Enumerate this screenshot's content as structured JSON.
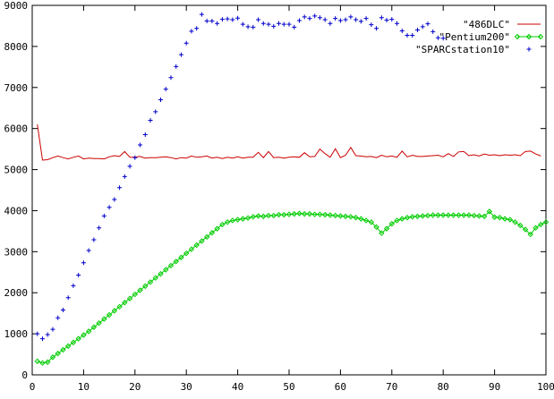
{
  "chart_data": {
    "type": "line",
    "xlim": [
      0,
      100
    ],
    "ylim": [
      0,
      9000
    ],
    "x_ticks": [
      0,
      10,
      20,
      30,
      40,
      50,
      60,
      70,
      80,
      90,
      100
    ],
    "y_ticks": [
      0,
      1000,
      2000,
      3000,
      4000,
      5000,
      6000,
      7000,
      8000,
      9000
    ],
    "grid": false,
    "legend_position": "top-right",
    "series": [
      {
        "name": "\"486DLC\"",
        "style": "lines",
        "color": "#cc0000",
        "points": [
          [
            1,
            6100
          ],
          [
            2,
            5230
          ],
          [
            3,
            5240
          ],
          [
            4,
            5290
          ],
          [
            5,
            5330
          ],
          [
            6,
            5290
          ],
          [
            7,
            5260
          ],
          [
            8,
            5300
          ],
          [
            9,
            5330
          ],
          [
            10,
            5260
          ],
          [
            11,
            5280
          ],
          [
            12,
            5270
          ],
          [
            13,
            5270
          ],
          [
            14,
            5260
          ],
          [
            15,
            5310
          ],
          [
            16,
            5340
          ],
          [
            17,
            5320
          ],
          [
            18,
            5440
          ],
          [
            19,
            5300
          ],
          [
            20,
            5300
          ],
          [
            21,
            5320
          ],
          [
            22,
            5280
          ],
          [
            23,
            5290
          ],
          [
            24,
            5290
          ],
          [
            25,
            5300
          ],
          [
            26,
            5310
          ],
          [
            27,
            5290
          ],
          [
            28,
            5260
          ],
          [
            29,
            5290
          ],
          [
            30,
            5280
          ],
          [
            31,
            5330
          ],
          [
            32,
            5300
          ],
          [
            33,
            5310
          ],
          [
            34,
            5330
          ],
          [
            35,
            5280
          ],
          [
            36,
            5300
          ],
          [
            37,
            5270
          ],
          [
            38,
            5300
          ],
          [
            39,
            5280
          ],
          [
            40,
            5310
          ],
          [
            41,
            5280
          ],
          [
            42,
            5300
          ],
          [
            43,
            5300
          ],
          [
            44,
            5420
          ],
          [
            45,
            5290
          ],
          [
            46,
            5440
          ],
          [
            47,
            5290
          ],
          [
            48,
            5300
          ],
          [
            49,
            5280
          ],
          [
            50,
            5300
          ],
          [
            51,
            5310
          ],
          [
            52,
            5300
          ],
          [
            53,
            5410
          ],
          [
            54,
            5310
          ],
          [
            55,
            5320
          ],
          [
            56,
            5500
          ],
          [
            57,
            5390
          ],
          [
            58,
            5300
          ],
          [
            59,
            5510
          ],
          [
            60,
            5290
          ],
          [
            61,
            5350
          ],
          [
            62,
            5540
          ],
          [
            63,
            5340
          ],
          [
            64,
            5330
          ],
          [
            65,
            5310
          ],
          [
            66,
            5320
          ],
          [
            67,
            5290
          ],
          [
            68,
            5350
          ],
          [
            69,
            5310
          ],
          [
            70,
            5330
          ],
          [
            71,
            5300
          ],
          [
            72,
            5450
          ],
          [
            73,
            5310
          ],
          [
            74,
            5350
          ],
          [
            75,
            5320
          ],
          [
            76,
            5320
          ],
          [
            77,
            5330
          ],
          [
            78,
            5340
          ],
          [
            79,
            5350
          ],
          [
            80,
            5310
          ],
          [
            81,
            5390
          ],
          [
            82,
            5320
          ],
          [
            83,
            5430
          ],
          [
            84,
            5440
          ],
          [
            85,
            5340
          ],
          [
            86,
            5360
          ],
          [
            87,
            5330
          ],
          [
            88,
            5380
          ],
          [
            89,
            5350
          ],
          [
            90,
            5360
          ],
          [
            91,
            5340
          ],
          [
            92,
            5360
          ],
          [
            93,
            5350
          ],
          [
            94,
            5360
          ],
          [
            95,
            5340
          ],
          [
            96,
            5440
          ],
          [
            97,
            5450
          ],
          [
            98,
            5380
          ],
          [
            99,
            5330
          ]
        ]
      },
      {
        "name": "\"Pentium200\"",
        "style": "linespoints",
        "color": "#00cc00",
        "points": [
          [
            1,
            330
          ],
          [
            2,
            290
          ],
          [
            3,
            310
          ],
          [
            4,
            430
          ],
          [
            5,
            520
          ],
          [
            6,
            610
          ],
          [
            7,
            700
          ],
          [
            8,
            790
          ],
          [
            9,
            880
          ],
          [
            10,
            970
          ],
          [
            11,
            1060
          ],
          [
            12,
            1160
          ],
          [
            13,
            1260
          ],
          [
            14,
            1360
          ],
          [
            15,
            1460
          ],
          [
            16,
            1560
          ],
          [
            17,
            1660
          ],
          [
            18,
            1760
          ],
          [
            19,
            1860
          ],
          [
            20,
            1960
          ],
          [
            21,
            2060
          ],
          [
            22,
            2160
          ],
          [
            23,
            2260
          ],
          [
            24,
            2360
          ],
          [
            25,
            2460
          ],
          [
            26,
            2560
          ],
          [
            27,
            2660
          ],
          [
            28,
            2760
          ],
          [
            29,
            2860
          ],
          [
            30,
            2960
          ],
          [
            31,
            3060
          ],
          [
            32,
            3160
          ],
          [
            33,
            3260
          ],
          [
            34,
            3360
          ],
          [
            35,
            3460
          ],
          [
            36,
            3560
          ],
          [
            37,
            3660
          ],
          [
            38,
            3720
          ],
          [
            39,
            3760
          ],
          [
            40,
            3780
          ],
          [
            41,
            3800
          ],
          [
            42,
            3820
          ],
          [
            43,
            3850
          ],
          [
            44,
            3870
          ],
          [
            45,
            3860
          ],
          [
            46,
            3880
          ],
          [
            47,
            3880
          ],
          [
            48,
            3900
          ],
          [
            49,
            3900
          ],
          [
            50,
            3910
          ],
          [
            51,
            3920
          ],
          [
            52,
            3930
          ],
          [
            53,
            3920
          ],
          [
            54,
            3920
          ],
          [
            55,
            3910
          ],
          [
            56,
            3910
          ],
          [
            57,
            3900
          ],
          [
            58,
            3890
          ],
          [
            59,
            3880
          ],
          [
            60,
            3870
          ],
          [
            61,
            3860
          ],
          [
            62,
            3850
          ],
          [
            63,
            3830
          ],
          [
            64,
            3800
          ],
          [
            65,
            3760
          ],
          [
            66,
            3720
          ],
          [
            67,
            3600
          ],
          [
            68,
            3450
          ],
          [
            69,
            3560
          ],
          [
            70,
            3680
          ],
          [
            71,
            3760
          ],
          [
            72,
            3800
          ],
          [
            73,
            3830
          ],
          [
            74,
            3850
          ],
          [
            75,
            3860
          ],
          [
            76,
            3870
          ],
          [
            77,
            3880
          ],
          [
            78,
            3890
          ],
          [
            79,
            3890
          ],
          [
            80,
            3890
          ],
          [
            81,
            3890
          ],
          [
            82,
            3890
          ],
          [
            83,
            3890
          ],
          [
            84,
            3890
          ],
          [
            85,
            3890
          ],
          [
            86,
            3880
          ],
          [
            87,
            3870
          ],
          [
            88,
            3860
          ],
          [
            89,
            3980
          ],
          [
            90,
            3840
          ],
          [
            91,
            3830
          ],
          [
            92,
            3800
          ],
          [
            93,
            3780
          ],
          [
            94,
            3720
          ],
          [
            95,
            3640
          ],
          [
            96,
            3540
          ],
          [
            97,
            3420
          ],
          [
            98,
            3580
          ],
          [
            99,
            3660
          ],
          [
            100,
            3720
          ]
        ]
      },
      {
        "name": "\"SPARCstation10\"",
        "style": "points",
        "color": "#0000cc",
        "points": [
          [
            1,
            1000
          ],
          [
            2,
            880
          ],
          [
            3,
            980
          ],
          [
            4,
            1110
          ],
          [
            5,
            1390
          ],
          [
            6,
            1580
          ],
          [
            7,
            1880
          ],
          [
            8,
            2170
          ],
          [
            9,
            2430
          ],
          [
            10,
            2730
          ],
          [
            11,
            3030
          ],
          [
            12,
            3290
          ],
          [
            13,
            3580
          ],
          [
            14,
            3870
          ],
          [
            15,
            4080
          ],
          [
            16,
            4270
          ],
          [
            17,
            4560
          ],
          [
            18,
            4830
          ],
          [
            19,
            5080
          ],
          [
            20,
            5290
          ],
          [
            21,
            5600
          ],
          [
            22,
            5850
          ],
          [
            23,
            6200
          ],
          [
            24,
            6410
          ],
          [
            25,
            6700
          ],
          [
            26,
            6960
          ],
          [
            27,
            7240
          ],
          [
            28,
            7510
          ],
          [
            29,
            7800
          ],
          [
            30,
            8080
          ],
          [
            31,
            8370
          ],
          [
            32,
            8440
          ],
          [
            33,
            8780
          ],
          [
            34,
            8620
          ],
          [
            35,
            8620
          ],
          [
            36,
            8560
          ],
          [
            37,
            8660
          ],
          [
            38,
            8670
          ],
          [
            39,
            8650
          ],
          [
            40,
            8690
          ],
          [
            41,
            8540
          ],
          [
            42,
            8480
          ],
          [
            43,
            8470
          ],
          [
            44,
            8650
          ],
          [
            45,
            8560
          ],
          [
            46,
            8540
          ],
          [
            47,
            8490
          ],
          [
            48,
            8560
          ],
          [
            49,
            8540
          ],
          [
            50,
            8540
          ],
          [
            51,
            8470
          ],
          [
            52,
            8630
          ],
          [
            53,
            8720
          ],
          [
            54,
            8680
          ],
          [
            55,
            8740
          ],
          [
            56,
            8700
          ],
          [
            57,
            8650
          ],
          [
            58,
            8560
          ],
          [
            59,
            8680
          ],
          [
            60,
            8630
          ],
          [
            61,
            8650
          ],
          [
            62,
            8720
          ],
          [
            63,
            8650
          ],
          [
            64,
            8610
          ],
          [
            65,
            8680
          ],
          [
            66,
            8530
          ],
          [
            67,
            8440
          ],
          [
            68,
            8700
          ],
          [
            69,
            8640
          ],
          [
            70,
            8660
          ],
          [
            71,
            8560
          ],
          [
            72,
            8380
          ],
          [
            73,
            8270
          ],
          [
            74,
            8270
          ],
          [
            75,
            8400
          ],
          [
            76,
            8480
          ],
          [
            77,
            8550
          ],
          [
            78,
            8360
          ],
          [
            79,
            8210
          ],
          [
            80,
            8200
          ]
        ]
      }
    ]
  }
}
